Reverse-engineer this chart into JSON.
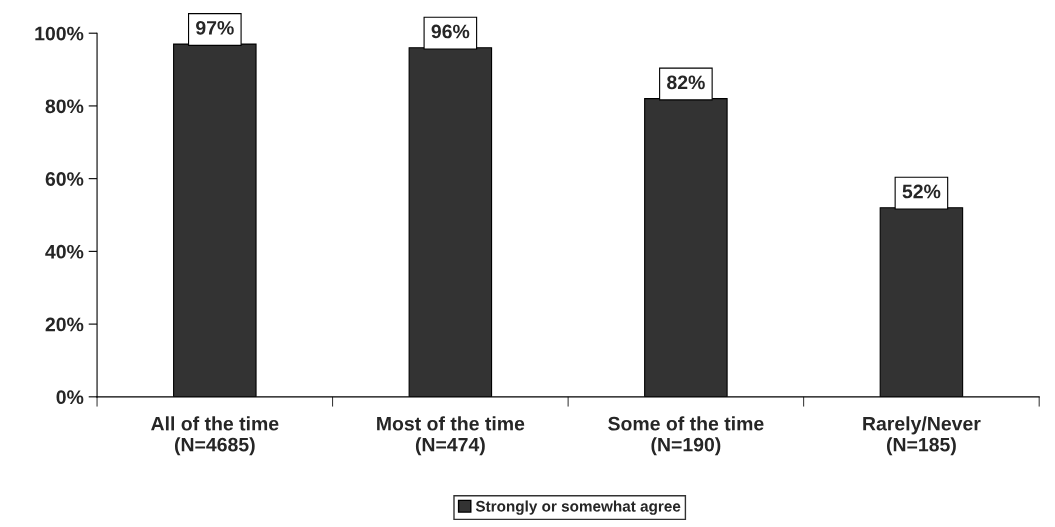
{
  "chart_data": {
    "type": "bar",
    "categories": [
      "All of the time\n(N=4685)",
      "Most of the time\n(N=474)",
      "Some of the time\n(N=190)",
      "Rarely/Never\n(N=185)"
    ],
    "series": [
      {
        "name": "Strongly or somewhat agree",
        "color": "#333333",
        "values": [
          97,
          96,
          82,
          52
        ],
        "value_labels": [
          "97%",
          "96%",
          "82%",
          "52%"
        ]
      }
    ],
    "ylim": [
      0,
      100
    ],
    "yticks": [
      {
        "value": 0,
        "label": "0%"
      },
      {
        "value": 20,
        "label": "20%"
      },
      {
        "value": 40,
        "label": "40%"
      },
      {
        "value": 60,
        "label": "60%"
      },
      {
        "value": 80,
        "label": "80%"
      },
      {
        "value": 100,
        "label": "100%"
      }
    ],
    "grid": false,
    "legend": "bottom"
  }
}
